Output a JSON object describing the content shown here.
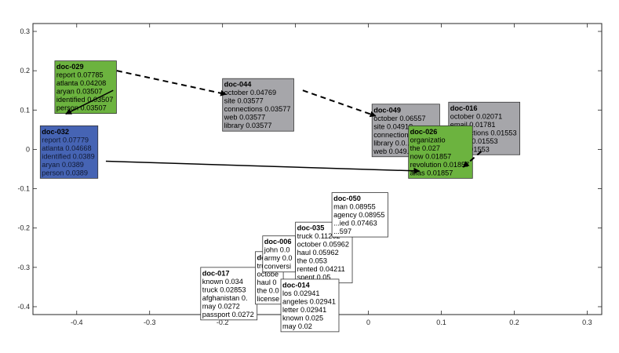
{
  "chart_data": {
    "type": "scatter",
    "title": "",
    "xlabel": "",
    "ylabel": "",
    "xlim": [
      -0.46,
      0.32
    ],
    "ylim": [
      -0.42,
      0.32
    ],
    "xticks": [
      -0.4,
      -0.3,
      -0.2,
      -0.1,
      0,
      0.1,
      0.2,
      0.3
    ],
    "xtick_labels": [
      "-0.4",
      "-0.3",
      "-0.2",
      "-0.1",
      "0",
      "0.1",
      "0.2",
      "0.3"
    ],
    "yticks": [
      0.3,
      0.2,
      0.1,
      0,
      -0.1,
      -0.2,
      -0.3,
      -0.4
    ],
    "ytick_labels": [
      "0.3",
      "0.2",
      "0.1",
      "0",
      "-0.1",
      "-0.2",
      "-0.3",
      "-0.4"
    ],
    "grid": false,
    "colors": {
      "green": "#6cb33f",
      "gray": "#a6a6aa",
      "blue": "#4664b4",
      "white": "#ffffff",
      "border": "#333333"
    },
    "docs": [
      {
        "id": "doc-017",
        "x": -0.23,
        "y": -0.3,
        "color": "white",
        "lines": [
          "known 0.034",
          "truck 0.02853",
          "afghanistan 0.",
          "may 0.0272",
          "passport 0.0272"
        ]
      },
      {
        "id": "doc-04",
        "x": -0.155,
        "y": -0.26,
        "color": "white",
        "lines": [
          "truck 0",
          "octobe",
          "haul 0",
          "the 0.0",
          "license"
        ]
      },
      {
        "id": "doc-006",
        "x": -0.145,
        "y": -0.22,
        "color": "white",
        "lines": [
          "john 0.0",
          "army 0.0",
          "conversi"
        ]
      },
      {
        "id": "doc-035",
        "x": -0.1,
        "y": -0.185,
        "color": "white",
        "lines": [
          "truck 0.11262",
          "october 0.05962",
          "haul 0.05962",
          "the 0.053",
          "rented 0.04211",
          "spent 0.05"
        ]
      },
      {
        "id": "doc-014",
        "x": -0.12,
        "y": -0.33,
        "color": "white",
        "lines": [
          "los 0.02941",
          "angeles 0.02941",
          "letter 0.02941",
          "known 0.025",
          "may 0.02"
        ]
      },
      {
        "id": "doc-050",
        "x": -0.05,
        "y": -0.11,
        "color": "white",
        "lines": [
          "man 0.08955",
          "agency 0.08955",
          "...ied 0.07463",
          "...597"
        ]
      },
      {
        "id": "doc-044",
        "x": -0.2,
        "y": 0.18,
        "color": "gray",
        "lines": [
          "october 0.04769",
          "site 0.03577",
          "connections 0.03577",
          "web 0.03577",
          "library 0.03577"
        ]
      },
      {
        "id": "doc-029",
        "x": -0.43,
        "y": 0.225,
        "color": "green",
        "lines": [
          "report 0.07785",
          "atlanta 0.04208",
          "aryan 0.03507",
          "identified 0.03507",
          "person 0.03507"
        ]
      },
      {
        "id": "doc-032",
        "x": -0.45,
        "y": 0.06,
        "color": "blue",
        "lines": [
          "report 0.07779",
          "atlanta 0.04668",
          "identified 0.0389",
          "aryan 0.0389",
          "person 0.0389"
        ]
      },
      {
        "id": "doc-049",
        "x": 0.005,
        "y": 0.115,
        "color": "gray",
        "lines": [
          "october 0.06557",
          "site 0.04918",
          "connection 0.04918",
          "library 0.0...",
          "web 0.049..."
        ]
      },
      {
        "id": "doc-016",
        "x": 0.11,
        "y": 0.12,
        "color": "gray",
        "lines": [
          "october 0.02071",
          "email 0.01781",
          "connections 0.01553",
          "library 0.01553",
          "site 0.01553"
        ]
      },
      {
        "id": "doc-026",
        "x": 0.055,
        "y": 0.06,
        "color": "green",
        "lines": [
          "organizatio",
          "the 0.027",
          "now 0.01857",
          "revolution 0.01857",
          "alias 0.01857"
        ]
      }
    ],
    "arrows": [
      {
        "from": [
          -0.345,
          0.2
        ],
        "to": [
          -0.195,
          0.14
        ],
        "style": "dashed"
      },
      {
        "from": [
          -0.09,
          0.15
        ],
        "to": [
          0.01,
          0.085
        ],
        "style": "dashed"
      },
      {
        "from": [
          -0.35,
          0.15
        ],
        "to": [
          -0.415,
          0.09
        ],
        "style": "solid"
      },
      {
        "from": [
          -0.36,
          -0.03
        ],
        "to": [
          0.07,
          -0.055
        ],
        "style": "solid"
      },
      {
        "from": [
          0.155,
          -0.005
        ],
        "to": [
          0.13,
          -0.045
        ],
        "style": "dashed"
      }
    ]
  }
}
